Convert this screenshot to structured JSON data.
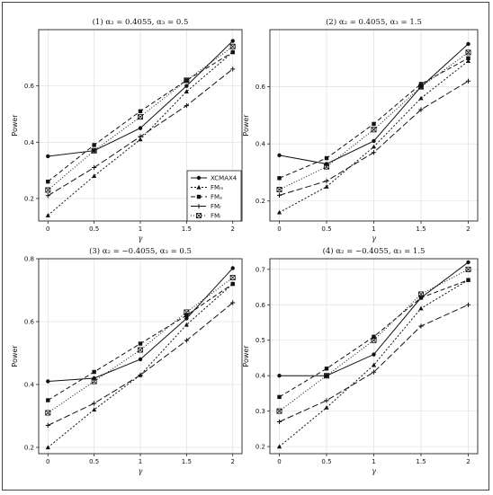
{
  "chart_data": [
    {
      "type": "line",
      "title": "(1) α₂ = 0.4055, α₃ = 0.5",
      "xlabel": "γ",
      "ylabel": "Power",
      "x": [
        0,
        0.5,
        1,
        1.5,
        2
      ],
      "xticks": [
        "0",
        "0.5",
        "1",
        "1.5",
        "2"
      ],
      "ylim": [
        0.12,
        0.8
      ],
      "yticks": [
        0.2,
        0.4,
        0.6
      ],
      "ytick_labels": [
        "0.2",
        "0.4",
        "0.6"
      ],
      "legend": "right-middle",
      "series": [
        {
          "name": "XCMAX4",
          "values": [
            0.35,
            0.37,
            0.45,
            0.6,
            0.76
          ]
        },
        {
          "name": "FMₘ",
          "values": [
            0.14,
            0.28,
            0.41,
            0.58,
            0.72
          ]
        },
        {
          "name": "FMₐ",
          "values": [
            0.26,
            0.39,
            0.51,
            0.62,
            0.72
          ]
        },
        {
          "name": "FMᵣ",
          "values": [
            0.21,
            0.31,
            0.42,
            0.53,
            0.66
          ]
        },
        {
          "name": "FMᵢ",
          "values": [
            0.23,
            0.37,
            0.49,
            0.62,
            0.74
          ]
        }
      ]
    },
    {
      "type": "line",
      "title": "(2) α₂ = 0.4055, α₃ = 1.5",
      "xlabel": "γ",
      "ylabel": "Power",
      "x": [
        0,
        0.5,
        1,
        1.5,
        2
      ],
      "xticks": [
        "0",
        "0.5",
        "1",
        "1.5",
        "2"
      ],
      "ylim": [
        0.13,
        0.8
      ],
      "yticks": [
        0.2,
        0.4,
        0.6
      ],
      "ytick_labels": [
        "0.2",
        "0.4",
        "0.6"
      ],
      "legend": "none",
      "series": [
        {
          "name": "XCMAX4",
          "values": [
            0.36,
            0.33,
            0.41,
            0.6,
            0.75
          ]
        },
        {
          "name": "FMₘ",
          "values": [
            0.16,
            0.25,
            0.39,
            0.56,
            0.69
          ]
        },
        {
          "name": "FMₐ",
          "values": [
            0.28,
            0.35,
            0.47,
            0.61,
            0.7
          ]
        },
        {
          "name": "FMᵣ",
          "values": [
            0.22,
            0.27,
            0.37,
            0.52,
            0.62
          ]
        },
        {
          "name": "FMᵢ",
          "values": [
            0.24,
            0.32,
            0.45,
            0.6,
            0.72
          ]
        }
      ]
    },
    {
      "type": "line",
      "title": "(3) α₂ = −0.4055, α₃ = 0.5",
      "xlabel": "γ",
      "ylabel": "Power",
      "x": [
        0,
        0.5,
        1,
        1.5,
        2
      ],
      "xticks": [
        "0",
        "0.5",
        "1",
        "1.5",
        "2"
      ],
      "ylim": [
        0.18,
        0.8
      ],
      "yticks": [
        0.2,
        0.4,
        0.6,
        0.8
      ],
      "ytick_labels": [
        "0.2",
        "0.4",
        "0.6",
        "0.8"
      ],
      "legend": "none",
      "series": [
        {
          "name": "XCMAX4",
          "values": [
            0.41,
            0.42,
            0.48,
            0.61,
            0.77
          ]
        },
        {
          "name": "FMₘ",
          "values": [
            0.2,
            0.32,
            0.43,
            0.59,
            0.72
          ]
        },
        {
          "name": "FMₐ",
          "values": [
            0.35,
            0.44,
            0.53,
            0.62,
            0.72
          ]
        },
        {
          "name": "FMᵣ",
          "values": [
            0.27,
            0.34,
            0.43,
            0.54,
            0.66
          ]
        },
        {
          "name": "FMᵢ",
          "values": [
            0.31,
            0.41,
            0.51,
            0.63,
            0.74
          ]
        }
      ]
    },
    {
      "type": "line",
      "title": "(4) α₂ = −0.4055, α₃ = 1.5",
      "xlabel": "γ",
      "ylabel": "Power",
      "x": [
        0,
        0.5,
        1,
        1.5,
        2
      ],
      "xticks": [
        "0",
        "0.5",
        "1",
        "1.5",
        "2"
      ],
      "ylim": [
        0.18,
        0.73
      ],
      "yticks": [
        0.2,
        0.3,
        0.4,
        0.5,
        0.6,
        0.7
      ],
      "ytick_labels": [
        "0.2",
        "0.3",
        "0.4",
        "0.5",
        "0.6",
        "0.7"
      ],
      "legend": "none",
      "series": [
        {
          "name": "XCMAX4",
          "values": [
            0.4,
            0.4,
            0.46,
            0.62,
            0.72
          ]
        },
        {
          "name": "FMₘ",
          "values": [
            0.2,
            0.31,
            0.43,
            0.59,
            0.67
          ]
        },
        {
          "name": "FMₐ",
          "values": [
            0.34,
            0.42,
            0.51,
            0.62,
            0.67
          ]
        },
        {
          "name": "FMᵣ",
          "values": [
            0.27,
            0.33,
            0.41,
            0.54,
            0.6
          ]
        },
        {
          "name": "FMᵢ",
          "values": [
            0.3,
            0.4,
            0.5,
            0.63,
            0.7
          ]
        }
      ]
    }
  ]
}
